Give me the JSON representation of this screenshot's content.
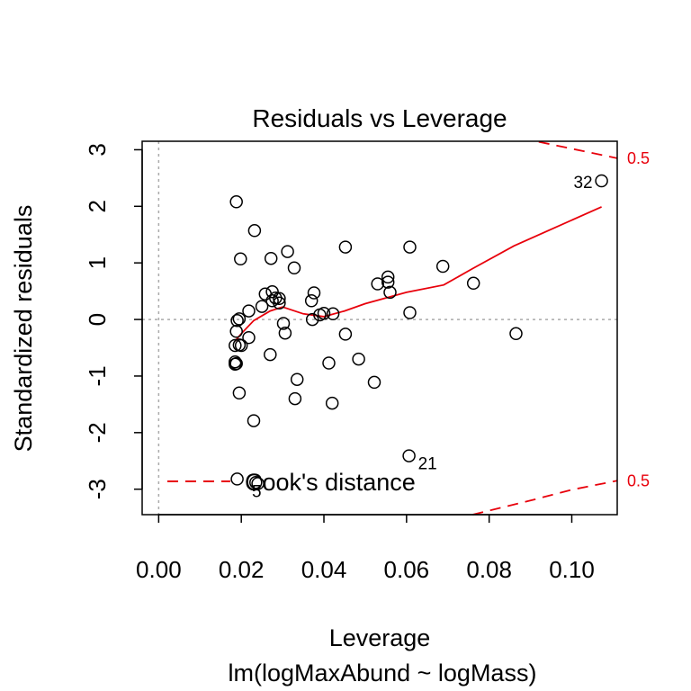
{
  "chart_data": {
    "type": "scatter",
    "title": "Residuals vs Leverage",
    "xlabel": "Leverage",
    "xlabel_sub": "lm(logMaxAbund ~ logMass)",
    "ylabel": "Standardized residuals",
    "xlim": [
      -0.004,
      0.111
    ],
    "ylim": [
      -3.45,
      3.15
    ],
    "x_ticks": [
      {
        "v": 0.0,
        "label": "0.00"
      },
      {
        "v": 0.02,
        "label": "0.02"
      },
      {
        "v": 0.04,
        "label": "0.04"
      },
      {
        "v": 0.06,
        "label": "0.06"
      },
      {
        "v": 0.08,
        "label": "0.08"
      },
      {
        "v": 0.1,
        "label": "0.10"
      }
    ],
    "y_ticks": [
      {
        "v": -3,
        "label": "-3"
      },
      {
        "v": -2,
        "label": "-2"
      },
      {
        "v": -1,
        "label": "-1"
      },
      {
        "v": 0,
        "label": "0"
      },
      {
        "v": 1,
        "label": "1"
      },
      {
        "v": 2,
        "label": "2"
      },
      {
        "v": 3,
        "label": "3"
      }
    ],
    "points": [
      [
        0.0188,
        2.08
      ],
      [
        0.0232,
        1.57
      ],
      [
        0.0198,
        1.07
      ],
      [
        0.0272,
        1.08
      ],
      [
        0.0312,
        1.2
      ],
      [
        0.0328,
        0.91
      ],
      [
        0.0452,
        1.28
      ],
      [
        0.0608,
        1.28
      ],
      [
        0.0688,
        0.94
      ],
      [
        0.0762,
        0.64
      ],
      [
        0.0555,
        0.75
      ],
      [
        0.0555,
        0.66
      ],
      [
        0.053,
        0.63
      ],
      [
        0.056,
        0.48
      ],
      [
        0.0608,
        0.12
      ],
      [
        0.0376,
        0.47
      ],
      [
        0.037,
        0.33
      ],
      [
        0.039,
        0.08
      ],
      [
        0.04,
        0.11
      ],
      [
        0.0422,
        0.1
      ],
      [
        0.0372,
        0.0
      ],
      [
        0.0302,
        -0.07
      ],
      [
        0.0306,
        -0.24
      ],
      [
        0.0452,
        -0.26
      ],
      [
        0.0865,
        -0.25
      ],
      [
        0.0258,
        0.45
      ],
      [
        0.0275,
        0.49
      ],
      [
        0.0283,
        0.38
      ],
      [
        0.0292,
        0.37
      ],
      [
        0.0275,
        0.33
      ],
      [
        0.0292,
        0.29
      ],
      [
        0.025,
        0.23
      ],
      [
        0.0218,
        0.15
      ],
      [
        0.0195,
        0.01
      ],
      [
        0.019,
        -0.02
      ],
      [
        0.0188,
        -0.21
      ],
      [
        0.0218,
        -0.32
      ],
      [
        0.0195,
        -0.45
      ],
      [
        0.02,
        -0.46
      ],
      [
        0.0185,
        -0.46
      ],
      [
        0.0185,
        -0.75
      ],
      [
        0.0188,
        -0.78
      ],
      [
        0.0185,
        -0.79
      ],
      [
        0.027,
        -0.62
      ],
      [
        0.0335,
        -1.06
      ],
      [
        0.0412,
        -0.77
      ],
      [
        0.0484,
        -0.7
      ],
      [
        0.0522,
        -1.11
      ],
      [
        0.0195,
        -1.3
      ],
      [
        0.033,
        -1.4
      ],
      [
        0.042,
        -1.48
      ],
      [
        0.023,
        -1.79
      ],
      [
        0.0606,
        -2.41
      ],
      [
        0.019,
        -2.82
      ],
      [
        0.0235,
        -2.88
      ],
      [
        0.024,
        -2.9
      ],
      [
        0.1072,
        2.45
      ]
    ],
    "point_labels": [
      {
        "x": 0.1072,
        "y": 2.45,
        "text": "32",
        "anchor": "end",
        "dx": -10,
        "dy": 8
      },
      {
        "x": 0.0606,
        "y": -2.41,
        "text": "21",
        "anchor": "start",
        "dx": 10,
        "dy": 15
      },
      {
        "x": 0.024,
        "y": -2.9,
        "text": "5",
        "anchor": "end",
        "dx": 4,
        "dy": 15
      }
    ],
    "smooth_line": {
      "color": "#e8000b",
      "x": [
        0.0185,
        0.02,
        0.023,
        0.027,
        0.03,
        0.035,
        0.04,
        0.045,
        0.05,
        0.06,
        0.069,
        0.076,
        0.086,
        0.1072
      ],
      "y": [
        -0.38,
        -0.25,
        -0.02,
        0.15,
        0.22,
        0.1,
        0.05,
        0.15,
        0.28,
        0.48,
        0.61,
        0.9,
        1.3,
        1.99
      ]
    },
    "cooks_contours": {
      "color": "#e8000b",
      "level_label": "0.5",
      "upper": {
        "x": [
          0.092,
          0.111
        ],
        "y": [
          3.14,
          2.85
        ]
      },
      "lower": {
        "x": [
          0.076,
          0.09,
          0.1,
          0.111
        ],
        "y": [
          -3.45,
          -3.2,
          -3.01,
          -2.85
        ]
      }
    },
    "legend": {
      "label": "Cook's distance",
      "position": "bottom-left",
      "line_style": "dashed",
      "color": "#e8000b"
    },
    "reference_lines": {
      "h": 0,
      "v": 0,
      "style": "dotted",
      "color": "#aaaaaa"
    },
    "grid": false
  }
}
